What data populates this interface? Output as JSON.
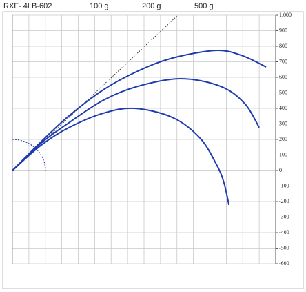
{
  "chart_data": {
    "type": "line",
    "title": "RXF- 4LB-602",
    "xlim": [
      0,
      1600
    ],
    "ylim": [
      -600,
      1000
    ],
    "yticks": [
      {
        "value": 1000,
        "label": "1,000"
      },
      900,
      800,
      700,
      600,
      500,
      400,
      300,
      200,
      100,
      0,
      -100,
      -200,
      -300,
      -400,
      -500,
      -600
    ],
    "grid": true,
    "series": [
      {
        "name": "100 g",
        "color": "#1f3cae",
        "x": [
          0,
          176,
          343,
          553,
          742,
          972,
          1140,
          1244,
          1286,
          1316
        ],
        "values": [
          0,
          164,
          276,
          369,
          400,
          342,
          209,
          31,
          -80,
          -222
        ]
      },
      {
        "name": "200 g",
        "color": "#1f3cae",
        "x": [
          0,
          176,
          343,
          553,
          762,
          1022,
          1265,
          1412,
          1500
        ],
        "values": [
          0,
          178,
          307,
          453,
          542,
          591,
          542,
          431,
          276
        ]
      },
      {
        "name": "500 g",
        "color": "#1f3cae",
        "x": [
          0,
          176,
          343,
          553,
          762,
          972,
          1236,
          1391,
          1542
        ],
        "values": [
          0,
          187,
          351,
          520,
          640,
          724,
          773,
          742,
          667
        ]
      }
    ]
  }
}
